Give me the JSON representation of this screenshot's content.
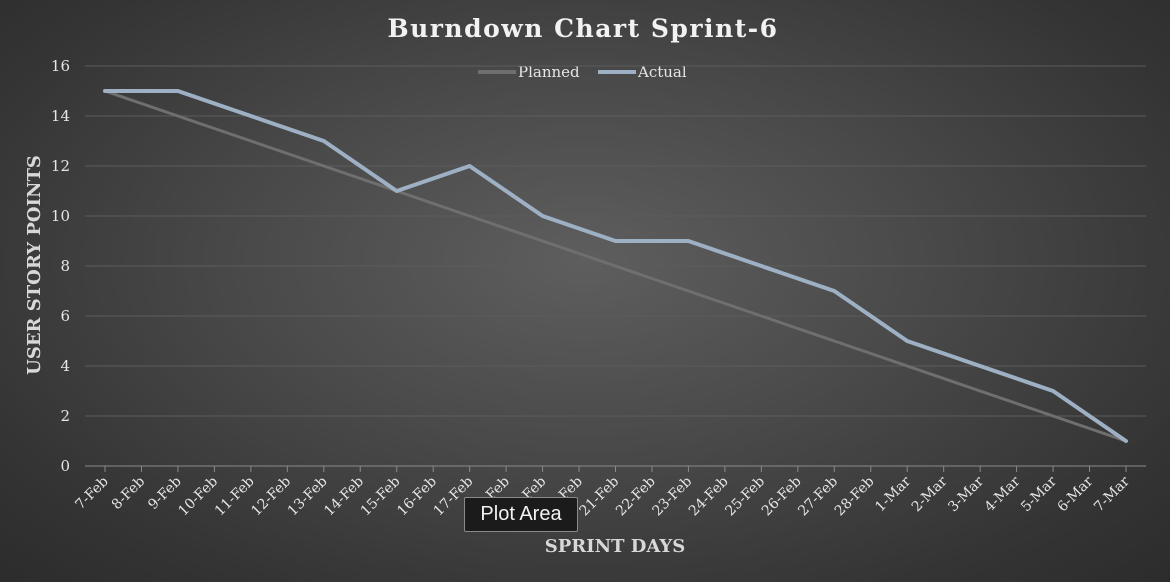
{
  "chart_data": {
    "type": "line",
    "title": "Burndown Chart Sprint-6",
    "xlabel": "SPRINT DAYS",
    "ylabel": "USER STORY POINTS",
    "ylim": [
      0,
      16
    ],
    "yticks": [
      0,
      2,
      4,
      6,
      8,
      10,
      12,
      14,
      16
    ],
    "grid": true,
    "legend_position": "top-center",
    "categories": [
      "7-Feb",
      "8-Feb",
      "9-Feb",
      "10-Feb",
      "11-Feb",
      "12-Feb",
      "13-Feb",
      "14-Feb",
      "15-Feb",
      "16-Feb",
      "17-Feb",
      "18-Feb",
      "19-Feb",
      "20-Feb",
      "21-Feb",
      "22-Feb",
      "23-Feb",
      "24-Feb",
      "25-Feb",
      "26-Feb",
      "27-Feb",
      "28-Feb",
      "1-Mar",
      "2-Mar",
      "3-Mar",
      "4-Mar",
      "5-Mar",
      "6-Mar",
      "7-Mar"
    ],
    "series": [
      {
        "name": "Planned",
        "color": "#6f6f6f",
        "values": [
          15,
          14.5,
          14,
          13.5,
          13,
          12.5,
          12,
          11.5,
          11,
          10.5,
          10,
          9.5,
          9,
          8.5,
          8,
          7.5,
          7,
          6.5,
          6,
          5.5,
          5,
          4.5,
          4,
          3.5,
          3,
          2.5,
          2,
          1.5,
          1
        ]
      },
      {
        "name": "Actual",
        "color": "#9eb0c4",
        "values": [
          15,
          15,
          15,
          14.5,
          14,
          13.5,
          13,
          12,
          11,
          11.5,
          12,
          11,
          10,
          9.5,
          9,
          9,
          9,
          8.5,
          8,
          7.5,
          7,
          6,
          5,
          4.5,
          4,
          3.5,
          3,
          2,
          1
        ]
      }
    ]
  },
  "tooltip": {
    "text": "Plot Area"
  }
}
